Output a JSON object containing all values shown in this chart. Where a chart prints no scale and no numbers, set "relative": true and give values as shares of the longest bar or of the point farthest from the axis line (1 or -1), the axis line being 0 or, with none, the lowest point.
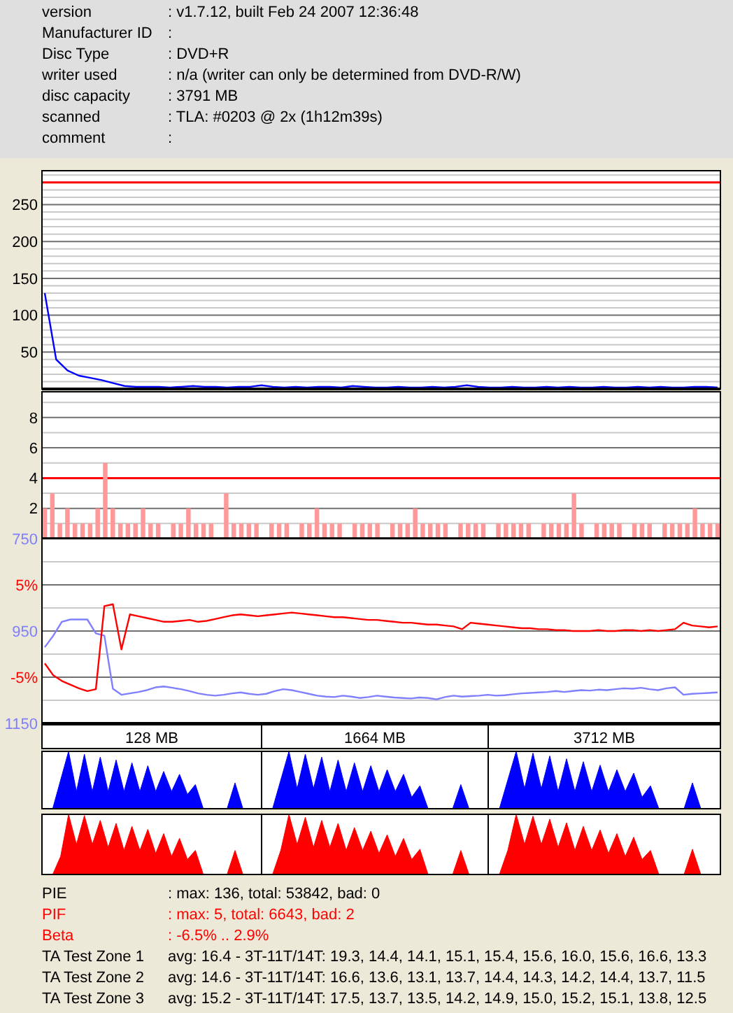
{
  "chart_data": [
    {
      "type": "other",
      "annotations": [
        "version",
        ": v1.7.12, built Feb 24 2007 12:36:48",
        "Manufacturer ID",
        ":",
        "Disc Type",
        ": DVD+R",
        "writer used",
        ": n/a (writer can only be determined from DVD-R/W)",
        "disc capacity",
        ": 3791 MB",
        "scanned",
        ": TLA: #0203 @ 2x (1h12m39s)",
        "comment",
        ":"
      ]
    },
    {
      "type": "line",
      "categories": [
        null,
        null,
        null,
        null,
        null,
        null,
        null,
        null,
        null,
        null,
        null,
        null,
        null,
        null,
        null,
        null,
        null,
        null,
        null,
        null,
        null,
        null,
        null,
        null,
        null,
        null,
        null,
        null,
        null,
        null,
        null,
        null,
        null,
        null,
        null,
        null,
        null,
        null,
        null,
        null,
        null,
        null,
        null,
        null,
        null,
        null,
        null,
        null,
        null,
        null,
        null,
        null,
        null,
        null,
        null,
        null,
        null,
        null,
        null,
        null
      ],
      "values": [
        130,
        40,
        25,
        18,
        15,
        12,
        8,
        4,
        3,
        3,
        3,
        2,
        3,
        4,
        3,
        3,
        2,
        3,
        3,
        5,
        3,
        2,
        3,
        2,
        3,
        3,
        2,
        4,
        3,
        2,
        2,
        3,
        2,
        2,
        3,
        2,
        3,
        5,
        3,
        2,
        2,
        3,
        2,
        2,
        3,
        2,
        3,
        2,
        2,
        3,
        2,
        2,
        3,
        2,
        3,
        2,
        2,
        3,
        3,
        2
      ],
      "color": "#0000ff",
      "ylim": [
        0,
        296
      ],
      "yticks": [
        {
          "value": 10,
          "label": null
        },
        {
          "value": 20,
          "label": null
        },
        {
          "value": 30,
          "label": null
        },
        {
          "value": 40,
          "label": null
        },
        50,
        {
          "value": 60,
          "label": null
        },
        {
          "value": 70,
          "label": null
        },
        {
          "value": 80,
          "label": null
        },
        {
          "value": 90,
          "label": null
        },
        100,
        {
          "value": 110,
          "label": null
        },
        {
          "value": 120,
          "label": null
        },
        {
          "value": 130,
          "label": null
        },
        {
          "value": 140,
          "label": null
        },
        150,
        {
          "value": 160,
          "label": null
        },
        {
          "value": 170,
          "label": null
        },
        {
          "value": 180,
          "label": null
        },
        {
          "value": 190,
          "label": null
        },
        200,
        {
          "value": 210,
          "label": null
        },
        {
          "value": 220,
          "label": null
        },
        {
          "value": 230,
          "label": null
        },
        {
          "value": 240,
          "label": null
        },
        250,
        {
          "value": 260,
          "label": null
        },
        {
          "value": 270,
          "label": null
        },
        {
          "value": 280,
          "label": null
        },
        {
          "value": 290,
          "label": null
        }
      ],
      "grid": "y",
      "ref_lines": [
        {
          "axis": "y",
          "value": 280,
          "color": "#ff0000"
        }
      ]
    },
    {
      "type": "bar",
      "categories": [
        null,
        null,
        null,
        null,
        null,
        null,
        null,
        null,
        null,
        null,
        null,
        null,
        null,
        null,
        null,
        null,
        null,
        null,
        null,
        null,
        null,
        null,
        null,
        null,
        null,
        null,
        null,
        null,
        null,
        null,
        null,
        null,
        null,
        null,
        null,
        null,
        null,
        null,
        null,
        null,
        null,
        null,
        null,
        null,
        null,
        null,
        null,
        null,
        null,
        null,
        null,
        null,
        null,
        null,
        null,
        null,
        null,
        null,
        null,
        null,
        null,
        null,
        null,
        null,
        null,
        null,
        null,
        null,
        null,
        null,
        null,
        null,
        null,
        null,
        null,
        null,
        null,
        null,
        null,
        null,
        null,
        null,
        null,
        null,
        null,
        null,
        null,
        null,
        null,
        null
      ],
      "values": [
        2,
        3,
        1,
        2,
        1,
        1,
        1,
        2,
        5,
        2,
        1,
        1,
        1,
        2,
        1,
        1,
        0,
        1,
        1,
        2,
        1,
        1,
        1,
        0,
        3,
        1,
        1,
        1,
        1,
        0,
        1,
        1,
        1,
        0,
        1,
        1,
        2,
        1,
        1,
        1,
        0,
        1,
        1,
        1,
        1,
        0,
        1,
        1,
        1,
        2,
        1,
        1,
        1,
        1,
        0,
        1,
        1,
        1,
        1,
        0,
        1,
        1,
        1,
        1,
        1,
        0,
        1,
        1,
        1,
        1,
        3,
        1,
        0,
        1,
        1,
        1,
        1,
        0,
        1,
        1,
        1,
        0,
        1,
        1,
        1,
        1,
        2,
        1,
        1,
        1
      ],
      "color": "#ff9999",
      "ylim": [
        0,
        9.7
      ],
      "yticks": [
        {
          "value": 1,
          "label": null
        },
        2,
        {
          "value": 3,
          "label": null
        },
        4,
        {
          "value": 5,
          "label": null
        },
        6,
        {
          "value": 7,
          "label": null
        },
        8,
        {
          "value": 9,
          "label": null
        }
      ],
      "grid": "y",
      "ref_lines": [
        {
          "axis": "y",
          "value": 4,
          "color": "#ff0000"
        }
      ]
    },
    {
      "type": "line",
      "categories": [
        null,
        null,
        null,
        null,
        null,
        null,
        null,
        null,
        null,
        null,
        null,
        null,
        null,
        null,
        null,
        null,
        null,
        null,
        null,
        null,
        null,
        null,
        null,
        null,
        null,
        null,
        null,
        null,
        null,
        null,
        null,
        null,
        null,
        null,
        null,
        null,
        null,
        null,
        null,
        null,
        null,
        null,
        null,
        null,
        null,
        null,
        null,
        null,
        null,
        null,
        null,
        null,
        null,
        null,
        null,
        null,
        null,
        null,
        null,
        null,
        null,
        null,
        null,
        null,
        null,
        null,
        null,
        null,
        null,
        null,
        null,
        null,
        null,
        null,
        null,
        null,
        null,
        null,
        null,
        null
      ],
      "series": [
        {
          "color": "#8080ff",
          "values": [
            985,
            960,
            930,
            925,
            925,
            925,
            955,
            960,
            1075,
            1088,
            1085,
            1082,
            1078,
            1072,
            1070,
            1073,
            1076,
            1080,
            1085,
            1088,
            1090,
            1088,
            1085,
            1083,
            1086,
            1088,
            1086,
            1080,
            1076,
            1078,
            1082,
            1086,
            1090,
            1092,
            1093,
            1090,
            1092,
            1095,
            1093,
            1090,
            1092,
            1094,
            1095,
            1096,
            1094,
            1095,
            1098,
            1093,
            1090,
            1092,
            1091,
            1090,
            1088,
            1090,
            1089,
            1087,
            1085,
            1084,
            1083,
            1082,
            1080,
            1082,
            1080,
            1078,
            1079,
            1077,
            1078,
            1076,
            1074,
            1075,
            1073,
            1076,
            1078,
            1074,
            1072,
            1088,
            1086,
            1085,
            1084,
            1083
          ]
        },
        {
          "color": "#ff0000",
          "axis": "y2",
          "values": [
            -3.5,
            -4.8,
            -5.4,
            -5.8,
            -6.2,
            -6.5,
            -6.3,
            2.7,
            2.9,
            -2.0,
            1.8,
            1.6,
            1.4,
            1.2,
            1.0,
            1.0,
            1.1,
            1.2,
            1.0,
            1.1,
            1.3,
            1.5,
            1.7,
            1.8,
            1.7,
            1.6,
            1.7,
            1.8,
            1.9,
            2.0,
            1.9,
            1.8,
            1.7,
            1.6,
            1.5,
            1.5,
            1.4,
            1.3,
            1.2,
            1.2,
            1.1,
            1.0,
            0.9,
            0.9,
            0.8,
            0.7,
            0.7,
            0.6,
            0.5,
            0.2,
            0.9,
            0.8,
            0.7,
            0.6,
            0.5,
            0.4,
            0.3,
            0.3,
            0.2,
            0.2,
            0.1,
            0.1,
            0.0,
            0.0,
            0.0,
            0.1,
            0.0,
            0.0,
            0.1,
            0.1,
            0.0,
            0.1,
            0.0,
            0.1,
            0.2,
            0.9,
            0.6,
            0.5,
            0.4,
            0.5
          ]
        }
      ],
      "ylim": [
        1150,
        750
      ],
      "yticks": [
        750,
        950,
        1150
      ],
      "y2lim": [
        -10,
        10
      ],
      "y2ticks": [
        {
          "value": 7.5,
          "label": null
        },
        {
          "value": 5,
          "label": "5%"
        },
        {
          "value": 2.5,
          "label": null
        },
        {
          "value": -2.5,
          "label": null
        },
        {
          "value": -5,
          "label": "-5%"
        },
        {
          "value": -7.5,
          "label": null
        }
      ],
      "grid": "y"
    },
    {
      "type": "area",
      "relative": true,
      "title": "128 MB",
      "categories": [
        null,
        null,
        null,
        null,
        null,
        null,
        null,
        null,
        null,
        null,
        null,
        null,
        null,
        null,
        null,
        null,
        null,
        null,
        null,
        null,
        null,
        null,
        null,
        null,
        null,
        null,
        null,
        null
      ],
      "color": "#0000ff",
      "values": [
        0,
        0,
        0.5,
        1.0,
        0.3,
        0.95,
        0.3,
        0.9,
        0.3,
        0.85,
        0.3,
        0.8,
        0.3,
        0.75,
        0.3,
        0.65,
        0.3,
        0.6,
        0.25,
        0.42,
        0,
        0,
        0,
        0,
        0.45,
        0,
        0,
        0
      ]
    },
    {
      "type": "area",
      "relative": true,
      "categories": [
        null,
        null,
        null,
        null,
        null,
        null,
        null,
        null,
        null,
        null,
        null,
        null,
        null,
        null,
        null,
        null,
        null,
        null,
        null,
        null,
        null,
        null,
        null,
        null,
        null,
        null,
        null,
        null
      ],
      "color": "#ff0000",
      "values": [
        0,
        0,
        0.3,
        1.0,
        0.5,
        0.98,
        0.5,
        0.9,
        0.45,
        0.85,
        0.4,
        0.8,
        0.4,
        0.75,
        0.35,
        0.68,
        0.3,
        0.6,
        0.25,
        0.4,
        0,
        0,
        0,
        0,
        0.4,
        0,
        0,
        0
      ]
    },
    {
      "type": "area",
      "relative": true,
      "title": "1664 MB",
      "categories": [
        null,
        null,
        null,
        null,
        null,
        null,
        null,
        null,
        null,
        null,
        null,
        null,
        null,
        null,
        null,
        null,
        null,
        null,
        null,
        null,
        null,
        null,
        null,
        null,
        null,
        null,
        null,
        null
      ],
      "color": "#0000ff",
      "values": [
        0,
        0,
        0.5,
        1.0,
        0.35,
        0.95,
        0.35,
        0.9,
        0.3,
        0.85,
        0.3,
        0.8,
        0.3,
        0.75,
        0.3,
        0.68,
        0.3,
        0.6,
        0.2,
        0.4,
        0,
        0,
        0,
        0,
        0.42,
        0,
        0,
        0
      ]
    },
    {
      "type": "area",
      "relative": true,
      "categories": [
        null,
        null,
        null,
        null,
        null,
        null,
        null,
        null,
        null,
        null,
        null,
        null,
        null,
        null,
        null,
        null,
        null,
        null,
        null,
        null,
        null,
        null,
        null,
        null,
        null,
        null,
        null,
        null
      ],
      "color": "#ff0000",
      "values": [
        0,
        0,
        0.4,
        1.0,
        0.5,
        0.95,
        0.45,
        0.9,
        0.45,
        0.85,
        0.4,
        0.78,
        0.4,
        0.72,
        0.35,
        0.66,
        0.3,
        0.6,
        0.25,
        0.42,
        0,
        0,
        0,
        0,
        0.4,
        0,
        0,
        0
      ]
    },
    {
      "type": "area",
      "relative": true,
      "title": "3712 MB",
      "categories": [
        null,
        null,
        null,
        null,
        null,
        null,
        null,
        null,
        null,
        null,
        null,
        null,
        null,
        null,
        null,
        null,
        null,
        null,
        null,
        null,
        null,
        null,
        null,
        null,
        null,
        null,
        null,
        null
      ],
      "color": "#0000ff",
      "values": [
        0,
        0,
        0.5,
        1.0,
        0.35,
        0.97,
        0.35,
        0.92,
        0.3,
        0.87,
        0.3,
        0.82,
        0.3,
        0.76,
        0.3,
        0.68,
        0.3,
        0.62,
        0.2,
        0.4,
        0,
        0,
        0,
        0,
        0.45,
        0,
        0,
        0
      ]
    },
    {
      "type": "area",
      "relative": true,
      "categories": [
        null,
        null,
        null,
        null,
        null,
        null,
        null,
        null,
        null,
        null,
        null,
        null,
        null,
        null,
        null,
        null,
        null,
        null,
        null,
        null,
        null,
        null,
        null,
        null,
        null,
        null,
        null,
        null
      ],
      "color": "#ff0000",
      "values": [
        0,
        0,
        0.4,
        1.0,
        0.5,
        0.97,
        0.5,
        0.92,
        0.45,
        0.86,
        0.4,
        0.8,
        0.4,
        0.74,
        0.35,
        0.68,
        0.3,
        0.62,
        0.25,
        0.4,
        0,
        0,
        0,
        0,
        0.42,
        0,
        0,
        0
      ]
    },
    {
      "type": "other",
      "colors": [
        "#000000",
        "#ff0000",
        "#ff0000",
        "#000000",
        "#000000",
        "#000000"
      ],
      "annotations": [
        "PIE",
        ": max: 136, total: 53842, bad: 0",
        "PIF",
        ": max: 5, total: 6643, bad: 2",
        "Beta",
        ": -6.5% .. 2.9%",
        "TA Test Zone 1",
        "avg: 16.4 - 3T-11T/14T: 19.3, 14.4, 14.1, 15.1, 15.4, 15.6, 16.0, 15.6, 16.6, 13.3",
        "TA Test Zone 2",
        "avg: 14.6 - 3T-11T/14T: 16.6, 13.6, 13.1, 13.7, 14.4, 14.3, 14.2, 14.4, 13.7, 11.5",
        "TA Test Zone 3",
        "avg: 15.2 - 3T-11T/14T: 17.5, 13.7, 13.5, 14.2, 14.9, 15.0, 15.2, 15.1, 13.8, 12.5"
      ]
    }
  ]
}
